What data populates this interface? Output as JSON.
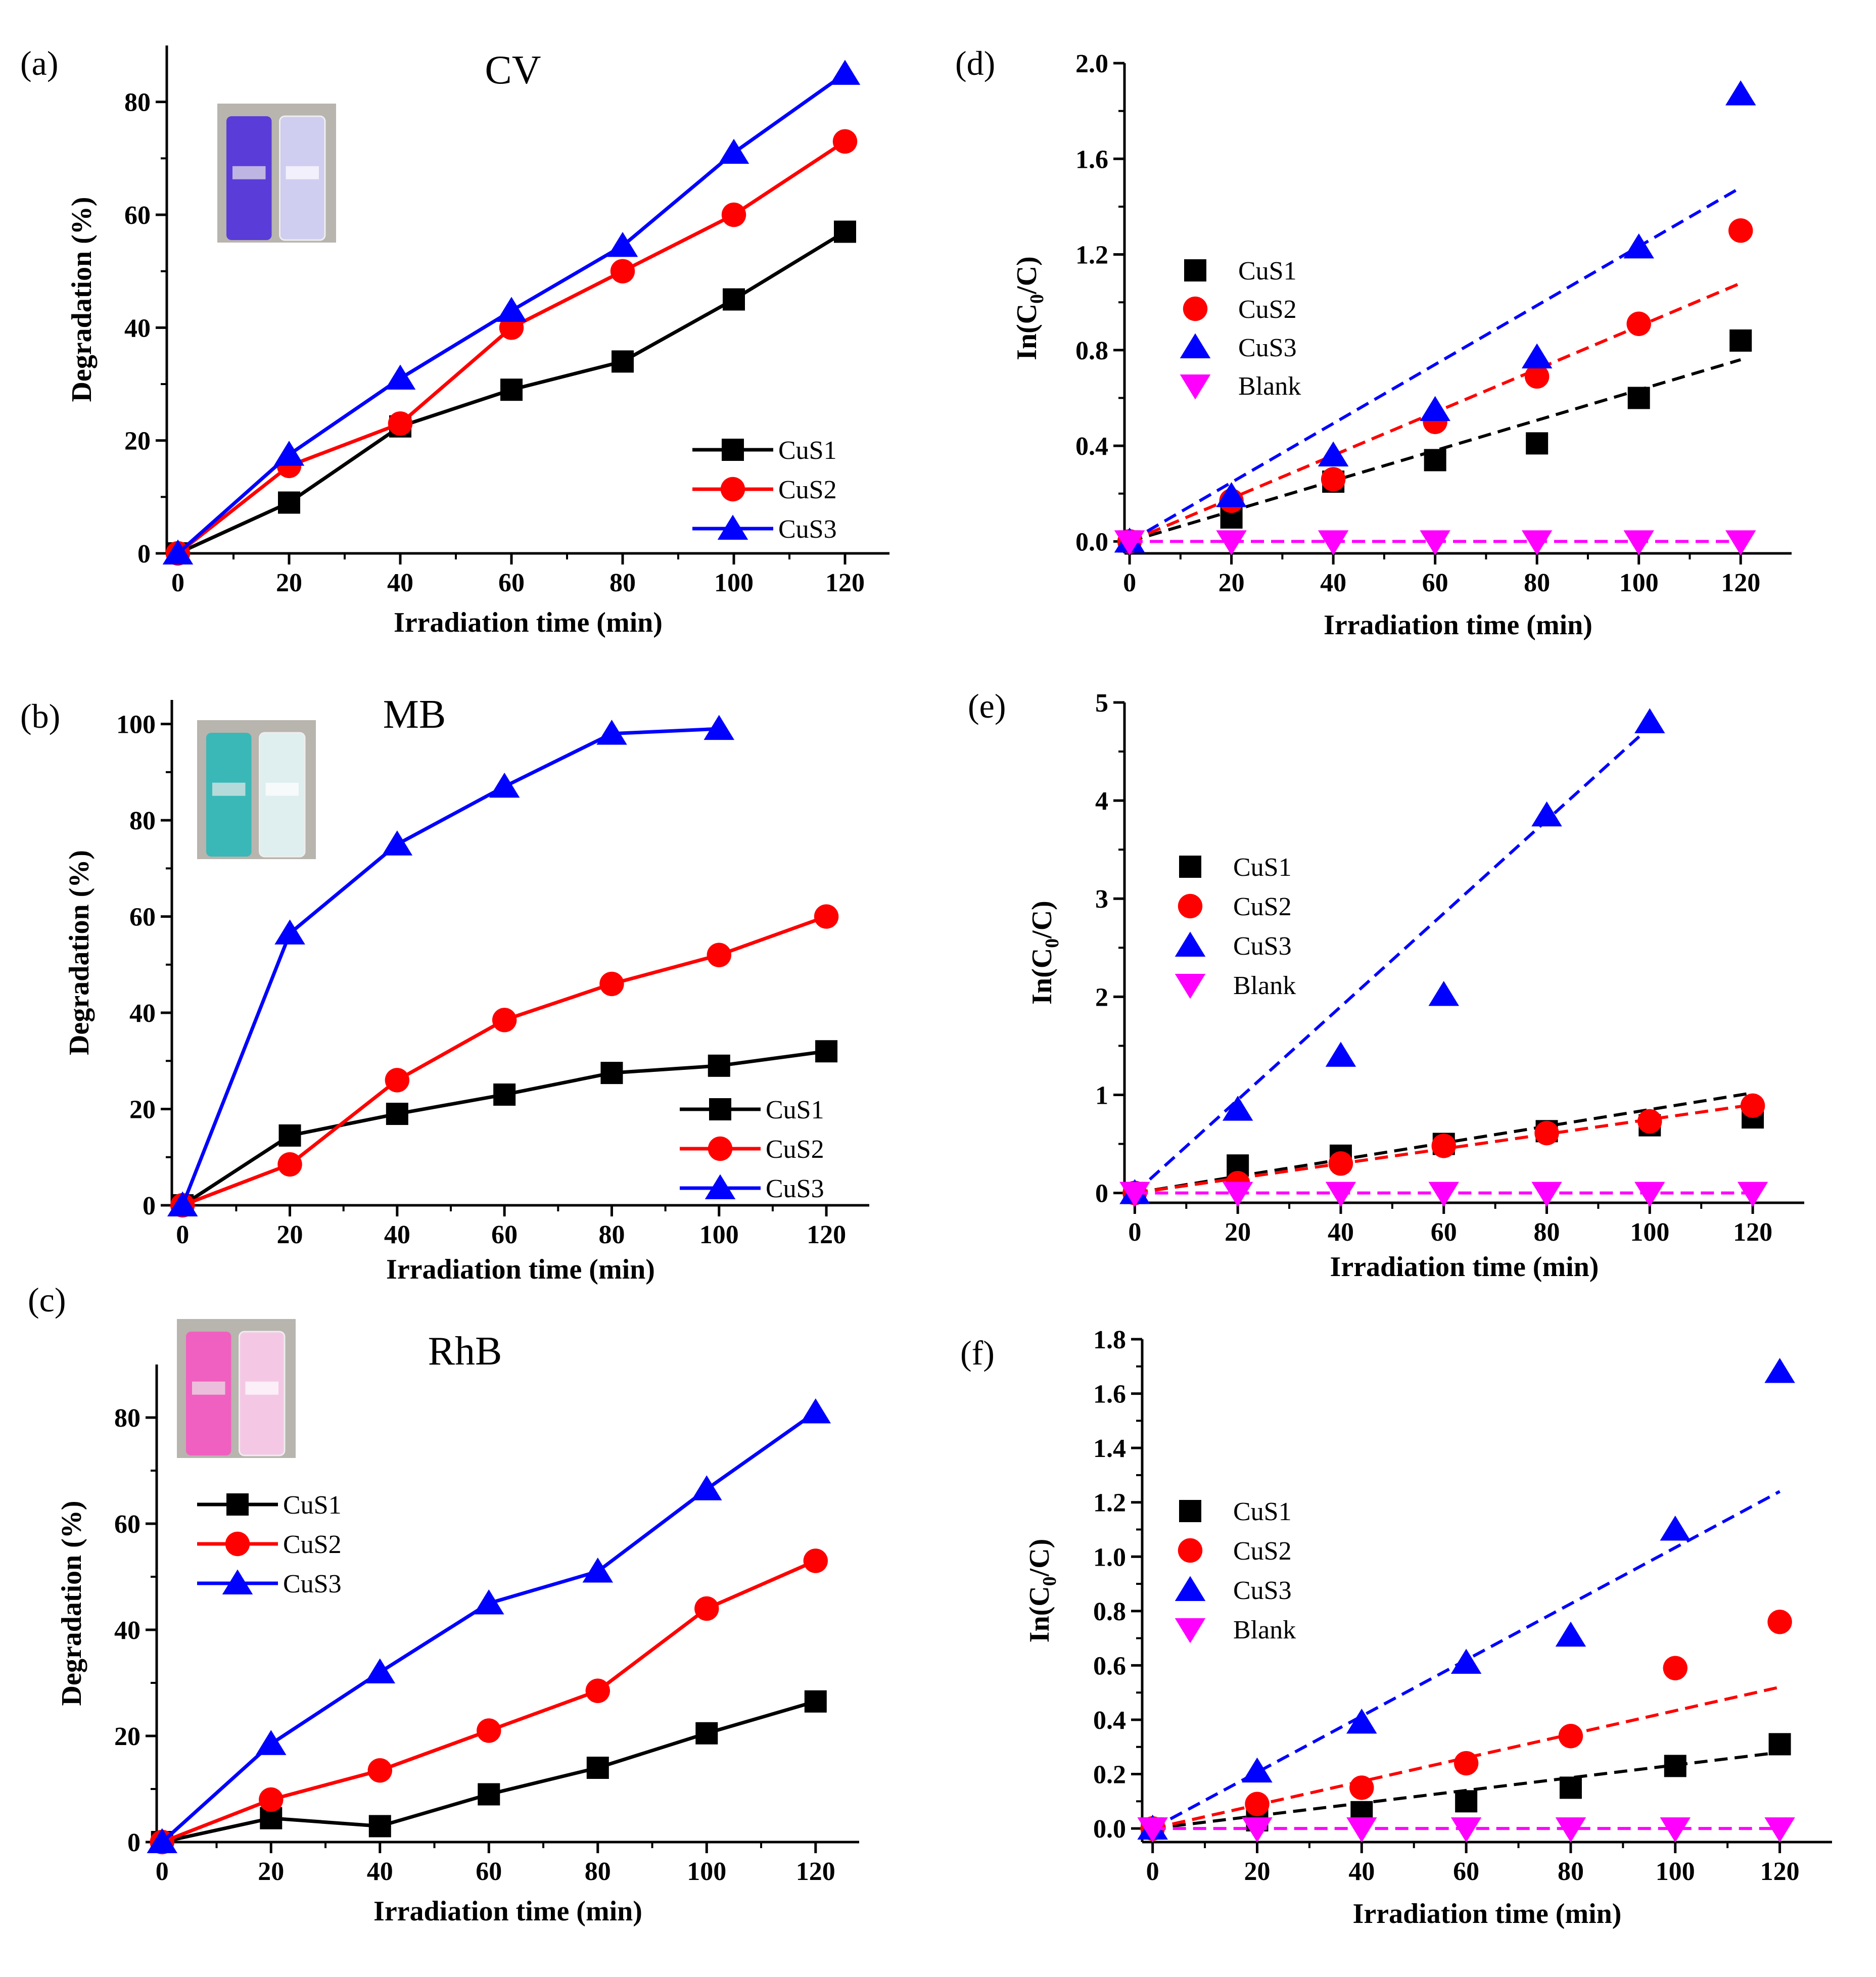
{
  "figure": {
    "colors": {
      "CuS1": "#000000",
      "CuS2": "#ff0000",
      "CuS3": "#0000ff",
      "Blank": "#ff00ff"
    }
  },
  "chart_data": [
    {
      "panel": "(a)",
      "title": "CV",
      "type": "line",
      "xlabel": "Irradiation time (min)",
      "ylabel": "Degradation (%)",
      "xlim": [
        -2,
        128
      ],
      "ylim": [
        0,
        90
      ],
      "xticks": [
        0,
        20,
        40,
        60,
        80,
        100,
        120
      ],
      "yticks": [
        0,
        20,
        40,
        60,
        80
      ],
      "legend_position": "bottom-right",
      "inset_image": "vial photo (purple dye before/after)",
      "series": [
        {
          "name": "CuS1",
          "color": "#000000",
          "marker": "square",
          "x": [
            0,
            20,
            40,
            60,
            80,
            100,
            120
          ],
          "y": [
            0,
            9,
            22.5,
            29,
            34,
            45,
            57
          ]
        },
        {
          "name": "CuS2",
          "color": "#ff0000",
          "marker": "circle",
          "x": [
            0,
            20,
            40,
            60,
            80,
            100,
            120
          ],
          "y": [
            0,
            15.5,
            23,
            40,
            50,
            60,
            73
          ]
        },
        {
          "name": "CuS3",
          "color": "#0000ff",
          "marker": "triangle",
          "x": [
            0,
            20,
            40,
            60,
            80,
            100,
            120
          ],
          "y": [
            0,
            17.5,
            31,
            43,
            54.5,
            71,
            85
          ]
        }
      ]
    },
    {
      "panel": "(b)",
      "title": "MB",
      "type": "line",
      "xlabel": "Irradiation time (min)",
      "ylabel": "Degradation (%)",
      "xlim": [
        -2,
        128
      ],
      "ylim": [
        0,
        105
      ],
      "xticks": [
        0,
        20,
        40,
        60,
        80,
        100,
        120
      ],
      "yticks": [
        0,
        20,
        40,
        60,
        80,
        100
      ],
      "legend_position": "bottom-right",
      "inset_image": "vial photo (blue dye before/after)",
      "series": [
        {
          "name": "CuS1",
          "color": "#000000",
          "marker": "square",
          "x": [
            0,
            20,
            40,
            60,
            80,
            100,
            120
          ],
          "y": [
            0,
            14.5,
            19,
            23,
            27.5,
            29,
            32
          ]
        },
        {
          "name": "CuS2",
          "color": "#ff0000",
          "marker": "circle",
          "x": [
            0,
            20,
            40,
            60,
            80,
            100,
            120
          ],
          "y": [
            0,
            8.5,
            26,
            38.5,
            46,
            52,
            60
          ]
        },
        {
          "name": "CuS3",
          "color": "#0000ff",
          "marker": "triangle",
          "x": [
            0,
            20,
            40,
            60,
            80,
            100
          ],
          "y": [
            0,
            56.5,
            75,
            87,
            98,
            99
          ]
        }
      ]
    },
    {
      "panel": "(c)",
      "title": "RhB",
      "type": "line",
      "xlabel": "Irradiation time (min)",
      "ylabel": "Degradation (%)",
      "xlim": [
        -1,
        128
      ],
      "ylim": [
        0,
        90
      ],
      "xticks": [
        0,
        20,
        40,
        60,
        80,
        100,
        120
      ],
      "yticks": [
        0,
        20,
        40,
        60,
        80
      ],
      "legend_position": "top-left",
      "inset_image": "vial photo (pink dye before/after)",
      "series": [
        {
          "name": "CuS1",
          "color": "#000000",
          "marker": "square",
          "x": [
            0,
            20,
            40,
            60,
            80,
            100,
            120
          ],
          "y": [
            0,
            4.5,
            3,
            9,
            14,
            20.5,
            26.5
          ]
        },
        {
          "name": "CuS2",
          "color": "#ff0000",
          "marker": "circle",
          "x": [
            0,
            20,
            40,
            60,
            80,
            100,
            120
          ],
          "y": [
            0,
            8,
            13.5,
            21,
            28.5,
            44,
            53
          ]
        },
        {
          "name": "CuS3",
          "color": "#0000ff",
          "marker": "triangle",
          "x": [
            0,
            20,
            40,
            60,
            80,
            100,
            120
          ],
          "y": [
            0,
            18.5,
            32,
            45,
            51,
            66.5,
            81
          ]
        }
      ]
    },
    {
      "panel": "(d)",
      "title": "",
      "type": "scatter",
      "xlabel": "Irradiation time (min)",
      "ylabel": "In(C0/C)",
      "xlim": [
        -1,
        130
      ],
      "ylim": [
        -0.05,
        2.0
      ],
      "xticks": [
        0,
        20,
        40,
        60,
        80,
        100,
        120
      ],
      "yticks": [
        0.0,
        0.4,
        0.8,
        1.2,
        1.6,
        2.0
      ],
      "legend_position": "middle-left",
      "series": [
        {
          "name": "CuS1",
          "color": "#000000",
          "marker": "square",
          "x": [
            0,
            20,
            40,
            60,
            80,
            100,
            120
          ],
          "y": [
            0,
            0.1,
            0.25,
            0.34,
            0.41,
            0.6,
            0.84
          ],
          "fit": [
            0,
            0.76
          ]
        },
        {
          "name": "CuS2",
          "color": "#ff0000",
          "marker": "circle",
          "x": [
            0,
            20,
            40,
            60,
            80,
            100,
            120
          ],
          "y": [
            0,
            0.17,
            0.26,
            0.5,
            0.69,
            0.91,
            1.3
          ],
          "fit": [
            0,
            1.08
          ]
        },
        {
          "name": "CuS3",
          "color": "#0000ff",
          "marker": "triangle",
          "x": [
            0,
            20,
            40,
            60,
            80,
            100,
            120
          ],
          "y": [
            0,
            0.19,
            0.36,
            0.55,
            0.77,
            1.23,
            1.87
          ],
          "fit": [
            0,
            1.48
          ]
        },
        {
          "name": "Blank",
          "color": "#ff00ff",
          "marker": "triangle-down",
          "x": [
            0,
            20,
            40,
            60,
            80,
            100,
            120
          ],
          "y": [
            0,
            0,
            0,
            0,
            0,
            0,
            0
          ],
          "fit": [
            0,
            0
          ]
        }
      ]
    },
    {
      "panel": "(e)",
      "title": "",
      "type": "scatter",
      "xlabel": "Irradiation time (min)",
      "ylabel": "In(C0/C)",
      "xlim": [
        -2,
        130
      ],
      "ylim": [
        -0.1,
        5.0
      ],
      "xticks": [
        0,
        20,
        40,
        60,
        80,
        100,
        120
      ],
      "yticks": [
        0,
        1,
        2,
        3,
        4,
        5
      ],
      "legend_position": "middle-left",
      "series": [
        {
          "name": "CuS1",
          "color": "#000000",
          "marker": "square",
          "x": [
            0,
            20,
            40,
            60,
            80,
            100,
            120
          ],
          "y": [
            0,
            0.28,
            0.38,
            0.5,
            0.63,
            0.69,
            0.77
          ],
          "fit": [
            0,
            1.02
          ]
        },
        {
          "name": "CuS2",
          "color": "#ff0000",
          "marker": "circle",
          "x": [
            0,
            20,
            40,
            60,
            80,
            100,
            120
          ],
          "y": [
            0,
            0.1,
            0.3,
            0.48,
            0.61,
            0.73,
            0.89
          ],
          "fit": [
            0,
            0.9
          ]
        },
        {
          "name": "CuS3",
          "color": "#0000ff",
          "marker": "triangle",
          "x": [
            0,
            20,
            40,
            60,
            80,
            100
          ],
          "y": [
            0,
            0.85,
            1.4,
            2.02,
            3.85,
            4.8
          ],
          "fit": [
            0,
            4.75
          ],
          "fit_xmax": 100
        },
        {
          "name": "Blank",
          "color": "#ff00ff",
          "marker": "triangle-down",
          "x": [
            0,
            20,
            40,
            60,
            80,
            100,
            120
          ],
          "y": [
            0,
            0,
            0,
            0,
            0,
            0,
            0
          ],
          "fit": [
            0,
            0
          ]
        }
      ]
    },
    {
      "panel": "(f)",
      "title": "",
      "type": "scatter",
      "xlabel": "Irradiation time (min)",
      "ylabel": "In(C0/C)",
      "xlim": [
        -2,
        130
      ],
      "ylim": [
        -0.05,
        1.8
      ],
      "xticks": [
        0,
        20,
        40,
        60,
        80,
        100,
        120
      ],
      "yticks": [
        0.0,
        0.2,
        0.4,
        0.6,
        0.8,
        1.0,
        1.2,
        1.4,
        1.6,
        1.8
      ],
      "legend_position": "middle-left",
      "series": [
        {
          "name": "CuS1",
          "color": "#000000",
          "marker": "square",
          "x": [
            0,
            20,
            40,
            60,
            80,
            100,
            120
          ],
          "y": [
            0,
            0.03,
            0.06,
            0.1,
            0.15,
            0.23,
            0.31
          ],
          "fit": [
            0,
            0.28
          ]
        },
        {
          "name": "CuS2",
          "color": "#ff0000",
          "marker": "circle",
          "x": [
            0,
            20,
            40,
            60,
            80,
            100,
            120
          ],
          "y": [
            0,
            0.09,
            0.15,
            0.24,
            0.34,
            0.59,
            0.76
          ],
          "fit": [
            0,
            0.52
          ]
        },
        {
          "name": "CuS3",
          "color": "#0000ff",
          "marker": "triangle",
          "x": [
            0,
            20,
            40,
            60,
            80,
            100,
            120
          ],
          "y": [
            0,
            0.21,
            0.39,
            0.61,
            0.71,
            1.1,
            1.68
          ],
          "fit": [
            0,
            1.24
          ]
        },
        {
          "name": "Blank",
          "color": "#ff00ff",
          "marker": "triangle-down",
          "x": [
            0,
            20,
            40,
            60,
            80,
            100,
            120
          ],
          "y": [
            0,
            0,
            0,
            0,
            0,
            0,
            0
          ],
          "fit": [
            0,
            0
          ]
        }
      ]
    }
  ]
}
